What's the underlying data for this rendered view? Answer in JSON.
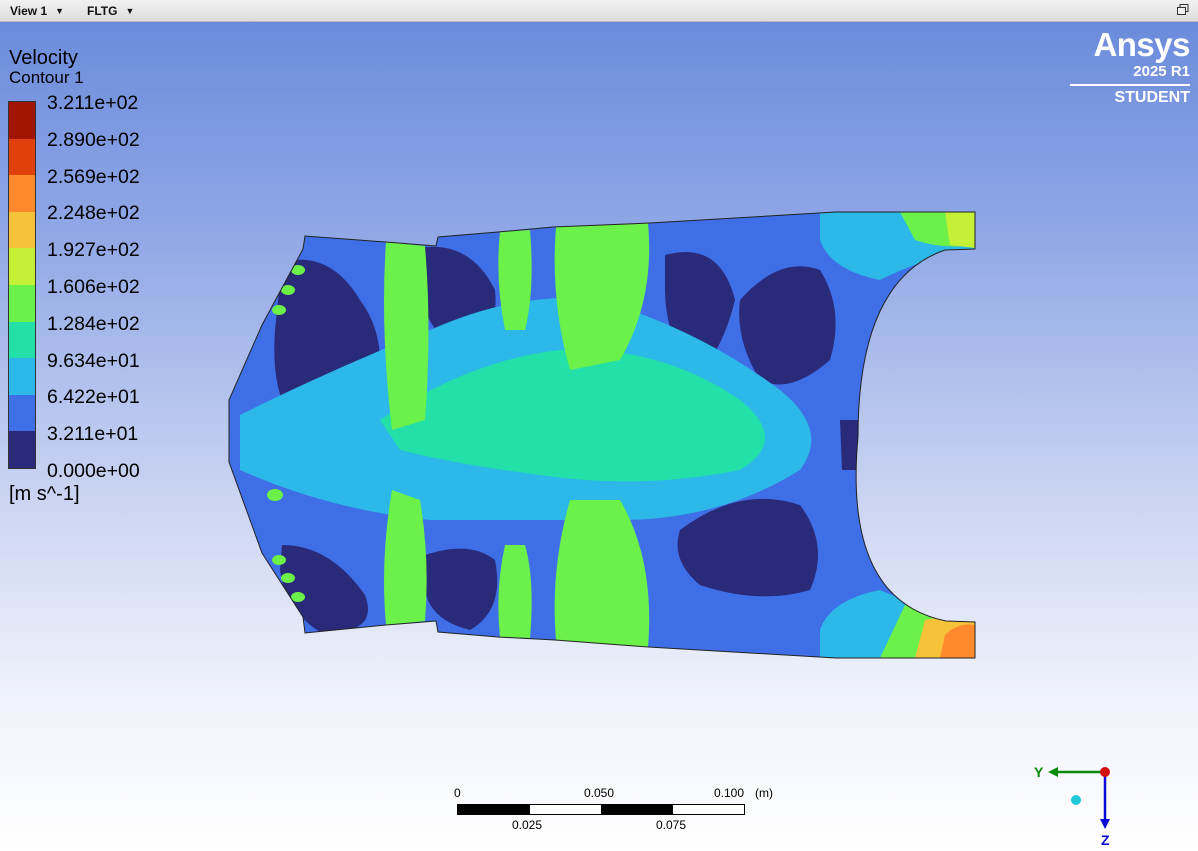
{
  "toolbar": {
    "view_label": "View 1",
    "object_label": "FLTG"
  },
  "legend": {
    "title": "Velocity",
    "subtitle": "Contour 1",
    "unit": "[m s^-1]",
    "levels": [
      "3.211e+02",
      "2.890e+02",
      "2.569e+02",
      "2.248e+02",
      "1.927e+02",
      "1.606e+02",
      "1.284e+02",
      "9.634e+01",
      "6.422e+01",
      "3.211e+01",
      "0.000e+00"
    ],
    "colors": [
      "#a01400",
      "#e0400c",
      "#ff8a2e",
      "#f5c23a",
      "#c4f035",
      "#6cf04a",
      "#22e0a8",
      "#2cb8e8",
      "#3f6fe6",
      "#2a2a7a"
    ]
  },
  "brand": {
    "name": "Ansys",
    "version": "2025 R1",
    "edition": "STUDENT"
  },
  "scale": {
    "top_labels": [
      "0",
      "0.050",
      "0.100"
    ],
    "bottom_labels": [
      "0.025",
      "0.075"
    ],
    "unit": "(m)"
  },
  "axes": {
    "y_label": "Y",
    "z_label": "Z"
  }
}
